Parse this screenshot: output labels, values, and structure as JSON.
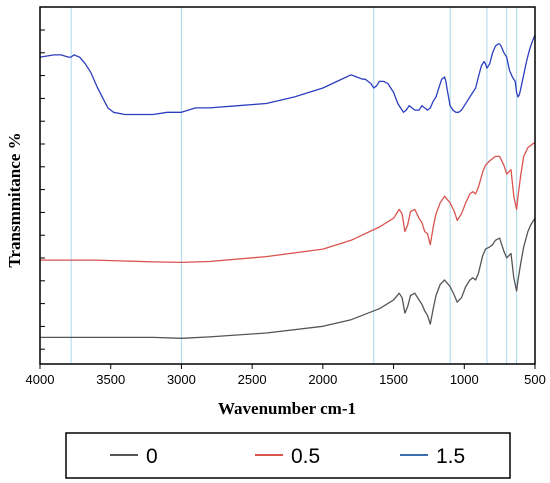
{
  "chart_data": {
    "type": "line",
    "title": "",
    "xlabel": "Wavenumber cm-1",
    "ylabel": "Transmmitance %",
    "xlim": [
      4000,
      500
    ],
    "x_reversed": true,
    "x_ticks": [
      4000,
      3500,
      3000,
      2500,
      2000,
      1500,
      1000,
      500
    ],
    "reference_lines": [
      3780,
      3000,
      1640,
      1100,
      840,
      700,
      630
    ],
    "legend_position": "bottom-outside",
    "series": [
      {
        "name": "0",
        "color": "#555555",
        "x": [
          4000,
          3600,
          3200,
          3000,
          2800,
          2400,
          2000,
          1800,
          1600,
          1500,
          1460,
          1440,
          1420,
          1400,
          1380,
          1350,
          1320,
          1300,
          1280,
          1260,
          1240,
          1220,
          1200,
          1170,
          1140,
          1100,
          1070,
          1050,
          1020,
          990,
          960,
          940,
          920,
          900,
          870,
          850,
          820,
          800,
          780,
          750,
          720,
          700,
          670,
          650,
          630,
          620,
          600,
          580,
          550,
          530,
          510,
          500
        ],
        "y": [
          1.5,
          1.5,
          1.5,
          1.3,
          1.6,
          2.5,
          4.0,
          5.5,
          8.0,
          10.0,
          11.5,
          10.5,
          7.0,
          8.5,
          11.0,
          11.5,
          10.0,
          9.0,
          7.5,
          6.5,
          4.5,
          8.0,
          11.0,
          13.5,
          14.5,
          13.0,
          11.0,
          9.5,
          10.5,
          13.0,
          14.5,
          15.0,
          14.5,
          16.0,
          20.0,
          21.5,
          22.0,
          22.5,
          23.5,
          24.0,
          21.0,
          19.5,
          20.5,
          15.0,
          12.0,
          14.5,
          18.5,
          22.0,
          25.5,
          27.0,
          28.0,
          28.5
        ]
      },
      {
        "name": "0.5",
        "color": "#d9534f",
        "x": [
          4000,
          3600,
          3200,
          3000,
          2800,
          2400,
          2000,
          1800,
          1600,
          1500,
          1460,
          1440,
          1420,
          1400,
          1380,
          1350,
          1320,
          1300,
          1280,
          1260,
          1240,
          1220,
          1200,
          1170,
          1140,
          1100,
          1070,
          1050,
          1020,
          990,
          960,
          940,
          920,
          900,
          870,
          850,
          820,
          800,
          780,
          750,
          720,
          700,
          670,
          650,
          630,
          620,
          600,
          580,
          550,
          530,
          510,
          500
        ],
        "y": [
          19.0,
          19.0,
          18.6,
          18.5,
          18.7,
          19.8,
          21.5,
          23.5,
          26.5,
          28.5,
          30.5,
          29.5,
          25.5,
          27.0,
          30.0,
          30.5,
          28.5,
          27.5,
          25.5,
          25.0,
          22.5,
          26.5,
          29.5,
          32.0,
          33.5,
          32.0,
          30.0,
          28.0,
          29.5,
          32.0,
          34.0,
          34.5,
          34.0,
          35.5,
          39.0,
          40.5,
          41.5,
          42.0,
          42.5,
          42.5,
          40.5,
          38.5,
          39.5,
          33.5,
          30.5,
          33.5,
          38.5,
          42.5,
          44.5,
          45.0,
          45.5,
          45.5
        ]
      },
      {
        "name": "1.5",
        "color": "#2c3fbf",
        "x": [
          4000,
          3900,
          3850,
          3800,
          3780,
          3760,
          3720,
          3680,
          3640,
          3600,
          3560,
          3520,
          3480,
          3400,
          3300,
          3200,
          3100,
          3000,
          2900,
          2800,
          2600,
          2400,
          2200,
          2000,
          1900,
          1800,
          1760,
          1720,
          1700,
          1680,
          1660,
          1640,
          1620,
          1600,
          1570,
          1540,
          1500,
          1470,
          1450,
          1430,
          1410,
          1390,
          1370,
          1350,
          1320,
          1300,
          1280,
          1260,
          1240,
          1220,
          1200,
          1180,
          1160,
          1140,
          1130,
          1120,
          1100,
          1080,
          1060,
          1040,
          1020,
          1000,
          980,
          960,
          940,
          920,
          900,
          880,
          860,
          850,
          840,
          820,
          800,
          780,
          760,
          750,
          740,
          720,
          700,
          680,
          660,
          640,
          630,
          620,
          610,
          600,
          580,
          560,
          540,
          520,
          500
        ],
        "y": [
          65.0,
          65.5,
          65.5,
          65.0,
          65.0,
          65.5,
          65.0,
          63.5,
          61.5,
          58.5,
          56.0,
          53.5,
          52.5,
          52.0,
          52.0,
          52.0,
          52.5,
          52.5,
          53.5,
          53.5,
          54.0,
          54.5,
          56.0,
          58.0,
          59.5,
          61.0,
          60.5,
          60.0,
          60.0,
          59.5,
          59.0,
          58.0,
          58.5,
          59.5,
          59.5,
          59.0,
          57.0,
          54.5,
          53.5,
          52.5,
          53.0,
          54.0,
          53.5,
          53.0,
          53.0,
          54.0,
          53.5,
          53.0,
          53.5,
          55.0,
          56.0,
          58.0,
          60.0,
          60.5,
          59.5,
          57.5,
          54.0,
          53.0,
          52.5,
          52.5,
          53.0,
          54.0,
          55.0,
          56.0,
          57.0,
          58.0,
          60.5,
          63.0,
          64.0,
          63.5,
          62.5,
          63.5,
          66.0,
          67.5,
          68.0,
          68.0,
          67.5,
          66.0,
          65.0,
          62.0,
          60.5,
          59.5,
          57.0,
          56.0,
          56.5,
          58.0,
          61.0,
          64.0,
          66.5,
          68.5,
          70.0
        ]
      }
    ],
    "legend": [
      {
        "name": "0",
        "color": "#555555"
      },
      {
        "name": "0.5",
        "color": "#d9534f"
      },
      {
        "name": "1.5",
        "color": "#3a6fb0"
      }
    ]
  }
}
